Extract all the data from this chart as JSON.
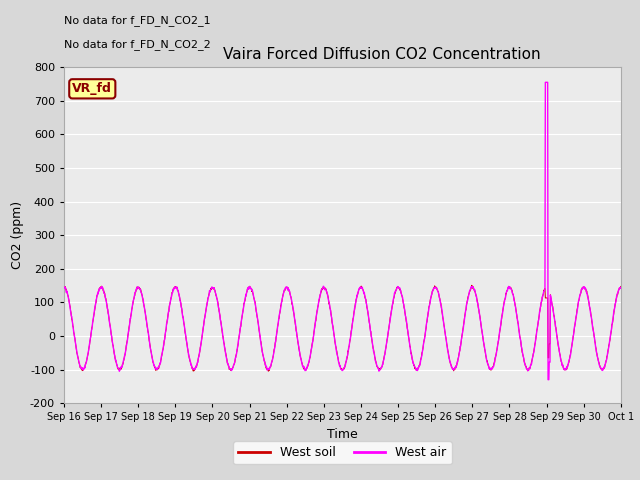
{
  "title": "Vaira Forced Diffusion CO2 Concentration",
  "xlabel": "Time",
  "ylabel": "CO2 (ppm)",
  "ylim": [
    -200,
    800
  ],
  "yticks": [
    -200,
    -100,
    0,
    100,
    200,
    300,
    400,
    500,
    600,
    700,
    800
  ],
  "xtick_labels": [
    "Sep 16",
    "Sep 17",
    "Sep 18",
    "Sep 19",
    "Sep 20",
    "Sep 21",
    "Sep 22",
    "Sep 23",
    "Sep 24",
    "Sep 25",
    "Sep 26",
    "Sep 27",
    "Sep 28",
    "Sep 29",
    "Sep 30",
    "Oct 1"
  ],
  "no_data_texts": [
    "No data for f_FD_N_CO2_1",
    "No data for f_FD_N_CO2_2"
  ],
  "vr_fd_label": "VR_fd",
  "legend_entries": [
    "West soil",
    "West air"
  ],
  "soil_color": "#cc0000",
  "air_color": "#ff00ff",
  "bg_color": "#d8d8d8",
  "plot_bg": "#ebebeb",
  "grid_color": "#ffffff",
  "spike_day": 13,
  "spike_high": 755,
  "spike_low": -130,
  "osc_min": -100,
  "osc_max": 145,
  "num_days": 15,
  "points_per_day": 96
}
